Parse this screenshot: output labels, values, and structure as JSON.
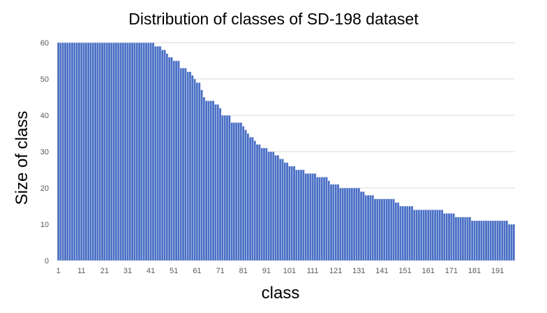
{
  "chart_data": {
    "type": "bar",
    "title": "Distribution of classes of SD-198 dataset",
    "xlabel": "class",
    "ylabel": "Size of class",
    "ylim": [
      0,
      60
    ],
    "yticks": [
      0,
      10,
      20,
      30,
      40,
      50,
      60
    ],
    "grid": true,
    "legend": "none",
    "categories": [
      "1",
      "2",
      "3",
      "4",
      "5",
      "6",
      "7",
      "8",
      "9",
      "10",
      "11",
      "12",
      "13",
      "14",
      "15",
      "16",
      "17",
      "18",
      "19",
      "20",
      "21",
      "22",
      "23",
      "24",
      "25",
      "26",
      "27",
      "28",
      "29",
      "30",
      "31",
      "32",
      "33",
      "34",
      "35",
      "36",
      "37",
      "38",
      "39",
      "40",
      "41",
      "42",
      "43",
      "44",
      "45",
      "46",
      "47",
      "48",
      "49",
      "50",
      "51",
      "52",
      "53",
      "54",
      "55",
      "56",
      "57",
      "58",
      "59",
      "60",
      "61",
      "62",
      "63",
      "64",
      "65",
      "66",
      "67",
      "68",
      "69",
      "70",
      "71",
      "72",
      "73",
      "74",
      "75",
      "76",
      "77",
      "78",
      "79",
      "80",
      "81",
      "82",
      "83",
      "84",
      "85",
      "86",
      "87",
      "88",
      "89",
      "90",
      "91",
      "92",
      "93",
      "94",
      "95",
      "96",
      "97",
      "98",
      "99",
      "100",
      "101",
      "102",
      "103",
      "104",
      "105",
      "106",
      "107",
      "108",
      "109",
      "110",
      "111",
      "112",
      "113",
      "114",
      "115",
      "116",
      "117",
      "118",
      "119",
      "120",
      "121",
      "122",
      "123",
      "124",
      "125",
      "126",
      "127",
      "128",
      "129",
      "130",
      "131",
      "132",
      "133",
      "134",
      "135",
      "136",
      "137",
      "138",
      "139",
      "140",
      "141",
      "142",
      "143",
      "144",
      "145",
      "146",
      "147",
      "148",
      "149",
      "150",
      "151",
      "152",
      "153",
      "154",
      "155",
      "156",
      "157",
      "158",
      "159",
      "160",
      "161",
      "162",
      "163",
      "164",
      "165",
      "166",
      "167",
      "168",
      "169",
      "170",
      "171",
      "172",
      "173",
      "174",
      "175",
      "176",
      "177",
      "178",
      "179",
      "180",
      "181",
      "182",
      "183",
      "184",
      "185",
      "186",
      "187",
      "188",
      "189",
      "190",
      "191",
      "192",
      "193",
      "194",
      "195",
      "196",
      "197",
      "198"
    ],
    "xticklabels": [
      "1",
      "11",
      "21",
      "31",
      "41",
      "51",
      "61",
      "71",
      "81",
      "91",
      "101",
      "111",
      "121",
      "131",
      "141",
      "151",
      "161",
      "171",
      "181",
      "191"
    ],
    "values": [
      60,
      60,
      60,
      60,
      60,
      60,
      60,
      60,
      60,
      60,
      60,
      60,
      60,
      60,
      60,
      60,
      60,
      60,
      60,
      60,
      60,
      60,
      60,
      60,
      60,
      60,
      60,
      60,
      60,
      60,
      60,
      60,
      60,
      60,
      60,
      60,
      60,
      60,
      60,
      60,
      60,
      60,
      59,
      59,
      59,
      58,
      58,
      57,
      56,
      56,
      55,
      55,
      55,
      53,
      53,
      53,
      52,
      52,
      51,
      50,
      49,
      49,
      47,
      45,
      44,
      44,
      44,
      44,
      43,
      43,
      42,
      40,
      40,
      40,
      40,
      38,
      38,
      38,
      38,
      38,
      37,
      36,
      35,
      34,
      34,
      33,
      32,
      32,
      31,
      31,
      31,
      30,
      30,
      30,
      29,
      29,
      28,
      28,
      27,
      27,
      26,
      26,
      26,
      25,
      25,
      25,
      25,
      24,
      24,
      24,
      24,
      24,
      23,
      23,
      23,
      23,
      23,
      22,
      21,
      21,
      21,
      21,
      20,
      20,
      20,
      20,
      20,
      20,
      20,
      20,
      20,
      19,
      19,
      18,
      18,
      18,
      18,
      17,
      17,
      17,
      17,
      17,
      17,
      17,
      17,
      17,
      16,
      16,
      15,
      15,
      15,
      15,
      15,
      15,
      14,
      14,
      14,
      14,
      14,
      14,
      14,
      14,
      14,
      14,
      14,
      14,
      14,
      13,
      13,
      13,
      13,
      13,
      12,
      12,
      12,
      12,
      12,
      12,
      12,
      11,
      11,
      11,
      11,
      11,
      11,
      11,
      11,
      11,
      11,
      11,
      11,
      11,
      11,
      11,
      11,
      10,
      10,
      10
    ],
    "colors": {
      "bar": "#4a6fc5",
      "bar_edge": "#e9eef8",
      "grid": "#d9d9d9",
      "tick": "#595959"
    }
  }
}
